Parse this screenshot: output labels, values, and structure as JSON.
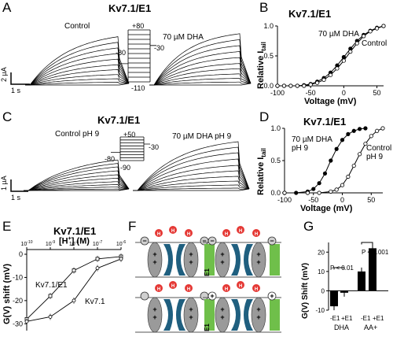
{
  "panels": {
    "A": {
      "letter": "A",
      "title": "Kv7.1/E1",
      "label_control": "Control",
      "label_dha": "70 µM DHA",
      "protocol": {
        "top": "+80",
        "right": "-30",
        "left": "-80",
        "bottom": "-110"
      },
      "scale": {
        "y": "2 µA",
        "x": "1 s"
      }
    },
    "B": {
      "letter": "B",
      "title": "Kv7.1/E1",
      "label_dha": "70 µM DHA",
      "label_control": "Control",
      "ylabel": "Relative I",
      "ylabel_sub": "tail",
      "xlabel": "Voltage (mV)",
      "x_ticks": [
        "-100",
        "-50",
        "0",
        "50"
      ],
      "y_ticks": [
        "0.0",
        "0.5",
        "1.0"
      ]
    },
    "C": {
      "letter": "C",
      "title": "Kv7.1/E1",
      "label_control": "Control pH 9",
      "label_dha": "70 µM DHA pH 9",
      "protocol": {
        "top": "+50",
        "right": "-30",
        "left": "-80",
        "bottom": "-90"
      },
      "scale": {
        "y": "1 µA",
        "x": "1 s"
      }
    },
    "D": {
      "letter": "D",
      "title": "Kv7.1/E1",
      "label_dha": "70 µM DHA",
      "label_dha2": "pH 9",
      "label_control": "Control",
      "label_control2": "pH 9",
      "ylabel": "Relative I",
      "ylabel_sub": "tail",
      "xlabel": "Voltage (mV)",
      "x_ticks": [
        "-100",
        "-50",
        "0",
        "50"
      ],
      "y_ticks": [
        "0.0",
        "0.5",
        "1.0"
      ]
    },
    "E": {
      "letter": "E",
      "title": "Kv7.1/E1",
      "top_label": "[H",
      "top_label_sup": "+",
      "top_label_end": "] (M)",
      "ylabel": "G(V) shift (mV)",
      "label_e1": "Kv7.1/E1",
      "label_kv": "Kv7.1",
      "y_ticks": [
        "0",
        "-10",
        "-20",
        "-30"
      ],
      "top_ticks": [
        {
          "b": "10",
          "e": "-10"
        },
        {
          "b": "10",
          "e": "-9"
        },
        {
          "b": "10",
          "e": "-8"
        },
        {
          "b": "10",
          "e": "-7"
        },
        {
          "b": "10",
          "e": "-6"
        }
      ]
    },
    "F": {
      "letter": "F",
      "e1_label": "E1",
      "ion": "H",
      "ion_sup": "+"
    },
    "G": {
      "letter": "G",
      "ylabel": "G(V) Shift (mV)",
      "y_ticks": [
        "20",
        "10",
        "0",
        "-10"
      ],
      "p1": "P < 0.01",
      "p2": "P < 0.001",
      "x_labels": [
        "-E1",
        "+E1",
        "-E1",
        "+E1"
      ],
      "group1": "DHA",
      "group2": "AA+"
    }
  },
  "chart_data": [
    {
      "type": "line",
      "panel": "B",
      "title": "Kv7.1/E1",
      "xlabel": "Voltage (mV)",
      "ylabel": "Relative I tail",
      "xlim": [
        -100,
        60
      ],
      "ylim": [
        0,
        1
      ],
      "series": [
        {
          "name": "70 µM DHA",
          "x": [
            -100,
            -90,
            -80,
            -70,
            -60,
            -50,
            -40,
            -30,
            -20,
            -10,
            0,
            10,
            20,
            30,
            40,
            50,
            60
          ],
          "y": [
            0,
            0,
            0,
            0,
            0.01,
            0.03,
            0.07,
            0.13,
            0.22,
            0.34,
            0.48,
            0.62,
            0.75,
            0.85,
            0.92,
            0.97,
            1.0
          ]
        },
        {
          "name": "Control",
          "x": [
            -100,
            -90,
            -80,
            -70,
            -60,
            -50,
            -40,
            -30,
            -20,
            -10,
            0,
            10,
            20,
            30,
            40,
            50,
            60
          ],
          "y": [
            0,
            0,
            0,
            0,
            0,
            0.02,
            0.05,
            0.1,
            0.18,
            0.29,
            0.42,
            0.57,
            0.71,
            0.83,
            0.91,
            0.96,
            1.0
          ]
        }
      ]
    },
    {
      "type": "line",
      "panel": "D",
      "title": "Kv7.1/E1",
      "xlabel": "Voltage (mV)",
      "ylabel": "Relative I tail",
      "xlim": [
        -100,
        70
      ],
      "ylim": [
        0,
        1
      ],
      "series": [
        {
          "name": "70 µM DHA pH 9",
          "x": [
            -100,
            -80,
            -60,
            -50,
            -40,
            -30,
            -20,
            -10,
            0,
            10,
            20,
            30,
            40
          ],
          "y": [
            0,
            0,
            0.02,
            0.06,
            0.15,
            0.3,
            0.5,
            0.68,
            0.82,
            0.91,
            0.96,
            0.99,
            1.0
          ]
        },
        {
          "name": "Control pH 9",
          "x": [
            -100,
            -60,
            -40,
            -20,
            -10,
            0,
            10,
            20,
            30,
            40,
            50,
            60,
            70
          ],
          "y": [
            0,
            0,
            0,
            0.02,
            0.05,
            0.12,
            0.25,
            0.42,
            0.6,
            0.76,
            0.88,
            0.96,
            1.0
          ]
        }
      ]
    },
    {
      "type": "scatter",
      "panel": "E",
      "title": "Kv7.1/E1",
      "ylabel": "G(V) shift (mV)",
      "xlabel": "[H+] (M)",
      "xlim": [
        1e-10,
        1e-06
      ],
      "ylim": [
        -30,
        0
      ],
      "series": [
        {
          "name": "Kv7.1/E1",
          "x": [
            1e-10,
            1e-09,
            1e-08,
            1e-07,
            1e-06
          ],
          "y": [
            -28,
            -18,
            -7,
            -2,
            -1
          ]
        },
        {
          "name": "Kv7.1",
          "x": [
            1e-10,
            1e-09,
            1e-08,
            1e-07,
            1e-06
          ],
          "y": [
            -29,
            -27,
            -20,
            -6,
            -2
          ]
        }
      ]
    },
    {
      "type": "bar",
      "panel": "G",
      "ylabel": "G(V) Shift (mV)",
      "ylim": [
        -10,
        25
      ],
      "categories": [
        "-E1",
        "+E1",
        "-E1",
        "+E1"
      ],
      "groups": [
        "DHA",
        "DHA",
        "AA+",
        "AA+"
      ],
      "values": [
        -8,
        -1,
        10,
        22
      ]
    }
  ]
}
